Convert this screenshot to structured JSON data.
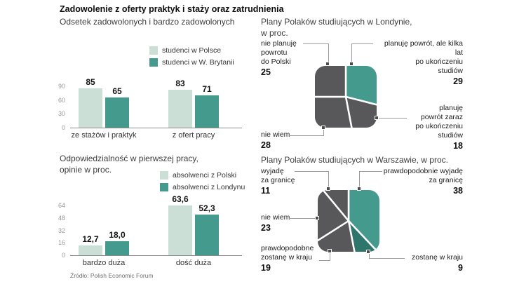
{
  "page": {
    "title": "Zadowolenie z oferty praktyk i staży oraz zatrudnienia",
    "source": "Źródło: Polish Economic Forum"
  },
  "colors": {
    "light_green": "#cbdfd6",
    "teal": "#459a8e",
    "dark": "#58585a",
    "dark_teal": "#2e756c"
  },
  "chart_data": [
    {
      "id": "satisfaction",
      "type": "bar",
      "title": "Odsetek zadowolonych i bardzo zadowolonych",
      "legend": [
        "studenci w Polsce",
        "studenci w W. Brytanii"
      ],
      "legend_position": "top-right",
      "categories": [
        "ze stażów i praktyk",
        "z ofert pracy"
      ],
      "series": [
        {
          "name": "studenci w Polsce",
          "values": [
            85,
            83
          ],
          "labels": [
            "85",
            "83"
          ]
        },
        {
          "name": "studenci w W. Brytanii",
          "values": [
            65,
            71
          ],
          "labels": [
            "65",
            "71"
          ]
        }
      ],
      "series_colors": [
        "light_green",
        "teal"
      ],
      "yticks": [
        90,
        60,
        30,
        0
      ],
      "ylim": [
        0,
        90
      ],
      "grid": false
    },
    {
      "id": "responsibility",
      "type": "bar",
      "title": "Odpowiedzialność w pierwszej pracy,\nopinie w proc.",
      "legend": [
        "absolwenci z Polski",
        "absolwenci z Londynu"
      ],
      "legend_position": "top-right",
      "categories": [
        "bardzo duża",
        "dość duża"
      ],
      "series": [
        {
          "name": "absolwenci z Polski",
          "values": [
            12.7,
            63.6
          ],
          "labels": [
            "12,7",
            "63,6"
          ]
        },
        {
          "name": "absolwenci z Londynu",
          "values": [
            18.0,
            52.3
          ],
          "labels": [
            "18,0",
            "52,3"
          ]
        }
      ],
      "series_colors": [
        "light_green",
        "teal"
      ],
      "yticks": [
        64,
        48,
        32,
        16,
        0
      ],
      "ylim": [
        0,
        64
      ],
      "grid": false
    },
    {
      "id": "london",
      "type": "pie",
      "title": "Plany Polaków studiujących w Londynie,\nw proc.",
      "slices": [
        {
          "label": "planuję powrót, ale kilka lat po ukończeniu studiów",
          "value": 29,
          "color": "teal"
        },
        {
          "label": "planuję powrót zaraz po ukończeniu studiów",
          "value": 18,
          "color": "dark"
        },
        {
          "label": "nie wiem",
          "value": 28,
          "color": "dark"
        },
        {
          "label": "nie planuję powrotu do Polski",
          "value": 25,
          "color": "dark"
        }
      ]
    },
    {
      "id": "warsaw",
      "type": "pie",
      "title": "Plany Polaków studiujących w Warszawie, w proc.",
      "slices": [
        {
          "label": "prawdopodobnie wyjadę za granicę",
          "value": 38,
          "color": "teal"
        },
        {
          "label": "zostanę w kraju",
          "value": 9,
          "color": "dark_teal"
        },
        {
          "label": "prawdopodobne zostanę w kraju",
          "value": 19,
          "color": "dark"
        },
        {
          "label": "nie wiem",
          "value": 23,
          "color": "dark"
        },
        {
          "label": "wyjadę za granicę",
          "value": 11,
          "color": "dark"
        }
      ]
    }
  ],
  "callouts": {
    "london": {
      "no_return": {
        "text": "nie planuję\npowrotu\ndo Polski",
        "value": "25"
      },
      "return_later": {
        "text": "planuję powrót, ale kilka\nlat\npo ukończeniu\nstudiów",
        "value": "29"
      },
      "return_soon": {
        "text": "planuję\npowrót zaraz\npo ukończeniu\nstudiów",
        "value": "18"
      },
      "dont_know": {
        "text": "nie wiem",
        "value": "28"
      }
    },
    "warsaw": {
      "leave": {
        "text": "wyjadę\nza granicę",
        "value": "11"
      },
      "probably_leave": {
        "text": "prawdopodobnie wyjadę\nza granicę",
        "value": "38"
      },
      "dont_know": {
        "text": "nie wiem",
        "value": "23"
      },
      "probably_stay": {
        "text": "prawdopodobne\nzostanę w kraju",
        "value": "19"
      },
      "stay": {
        "text": "zostanę w kraju",
        "value": "9"
      }
    }
  }
}
